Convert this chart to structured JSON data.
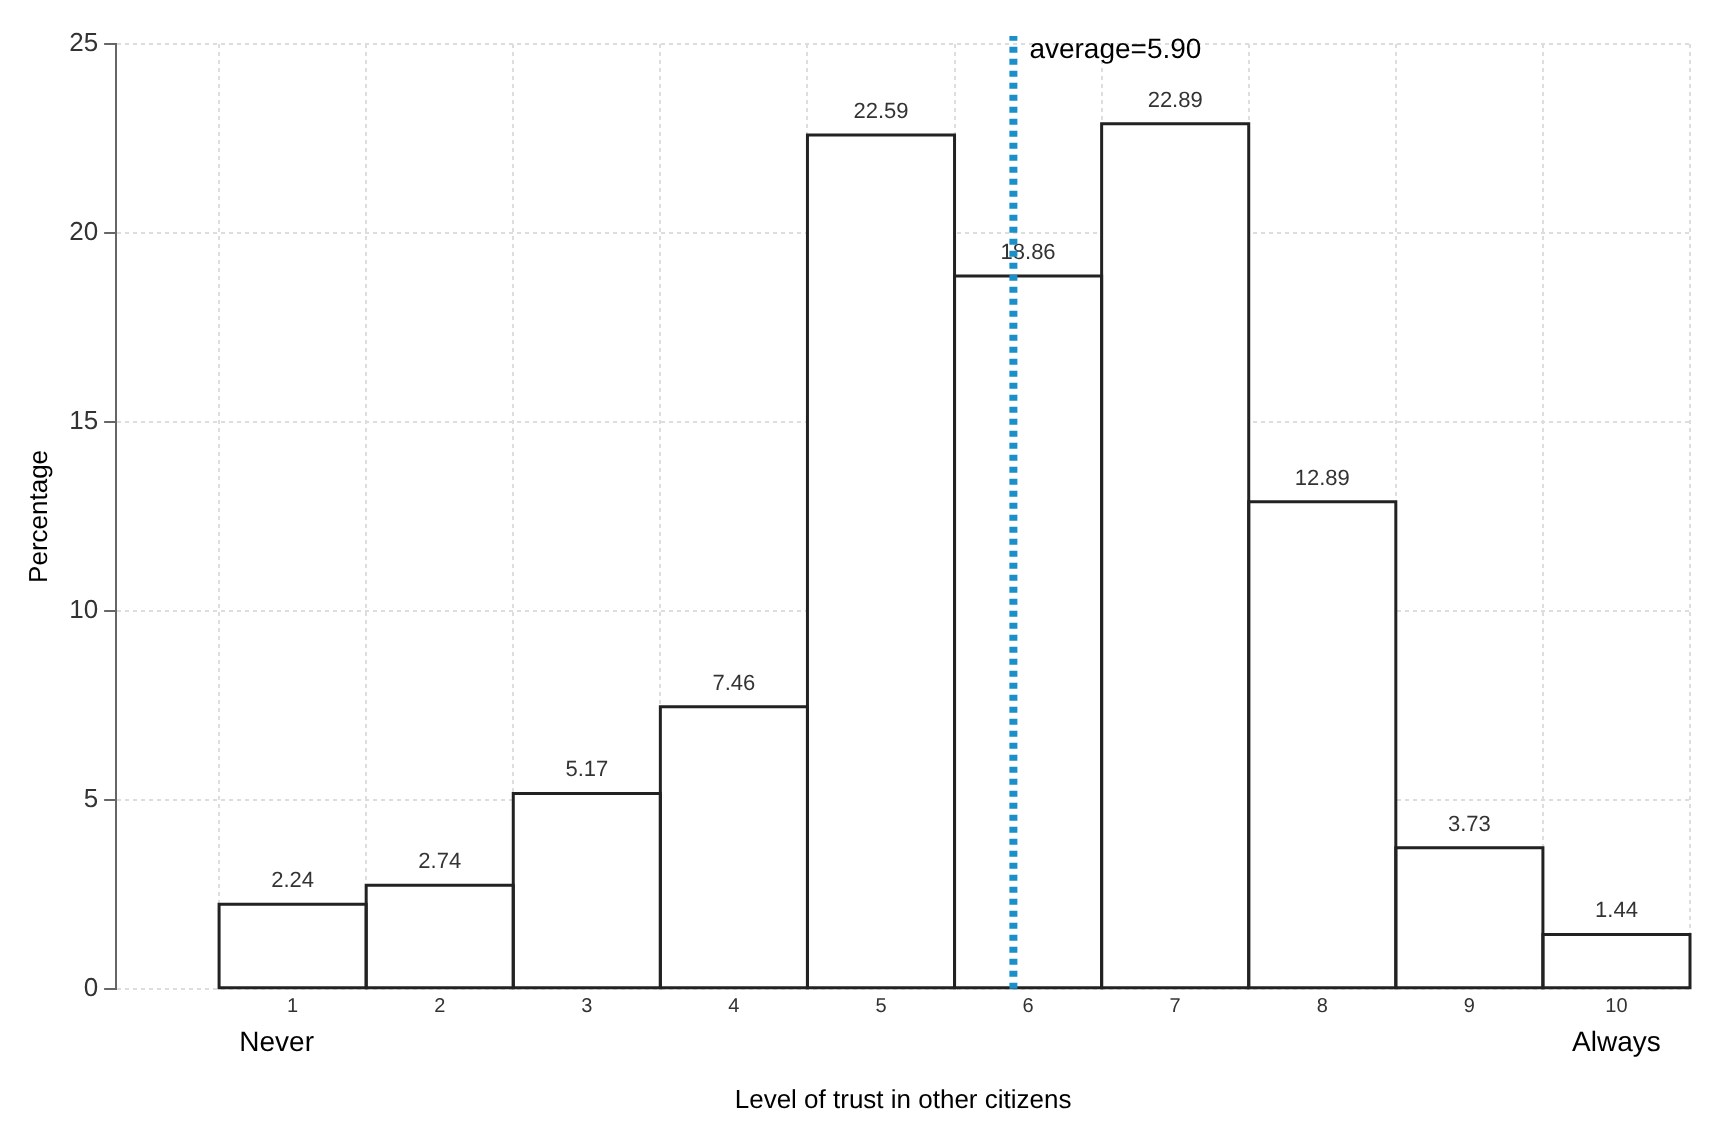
{
  "chart_data": {
    "type": "histogram",
    "xlabel": "Level of trust in other citizens",
    "ylabel": "Percentage",
    "bins": [
      0.5,
      1.5,
      2.5,
      3.5,
      4.5,
      5.5,
      6.5,
      7.5,
      8.5,
      9.5,
      10.5
    ],
    "values": [
      2.24,
      2.74,
      5.17,
      7.46,
      22.59,
      18.86,
      22.89,
      12.89,
      3.73,
      1.44
    ],
    "color": "#ffffff",
    "xlim": [
      -0.2,
      10.5
    ],
    "xticks": [
      1,
      2,
      3,
      4,
      5,
      6,
      7,
      8,
      9,
      10
    ],
    "ylim": [
      0,
      25
    ],
    "yticks": [
      0,
      5,
      10,
      15,
      20,
      25
    ],
    "grid": true,
    "data_labels": true,
    "ref_lines": [
      {
        "axis": "x",
        "value": 5.9,
        "label": "average=5.90",
        "color": "#1a8fc9",
        "line_style": "dotted"
      }
    ],
    "annotations": [
      "Never",
      "Always"
    ]
  }
}
